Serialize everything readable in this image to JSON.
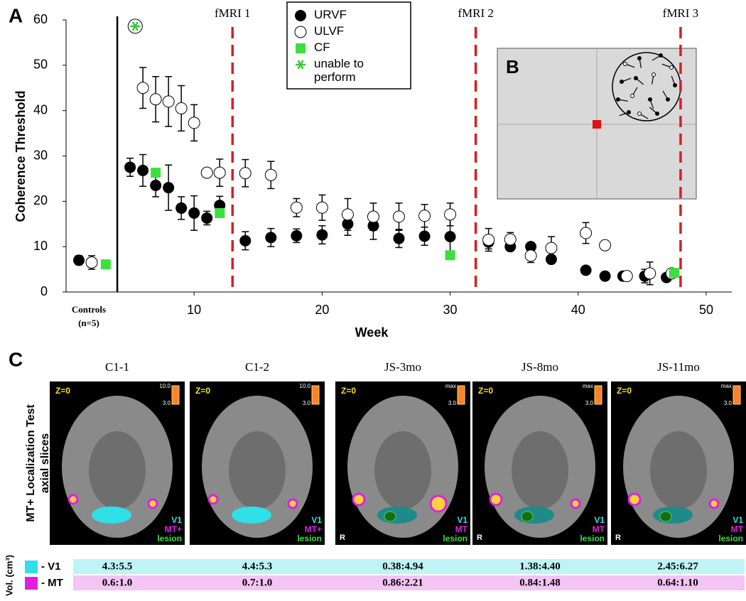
{
  "chart_data": {
    "type": "scatter",
    "panel_label": "A",
    "y_label": "Coherence Threshold",
    "x_label": "Week",
    "controls_label": "Controls",
    "controls_n": "(n=5)",
    "xlim": [
      0,
      52
    ],
    "ylim": [
      0,
      60
    ],
    "xticks": [
      10,
      20,
      30,
      40,
      50
    ],
    "yticks": [
      0,
      10,
      20,
      30,
      40,
      50,
      60
    ],
    "divider_x": 4,
    "vlines": [
      {
        "x": 13,
        "label": "fMRI 1"
      },
      {
        "x": 32,
        "label": "fMRI 2"
      },
      {
        "x": 48,
        "label": "fMRI 3"
      }
    ],
    "vline_color": "#d42020",
    "series": [
      {
        "name": "URVF",
        "marker": "filled-circle",
        "color": "#000000",
        "x": [
          1,
          5,
          6,
          7,
          8,
          9,
          10,
          11,
          12,
          14,
          16,
          18,
          20,
          22,
          24,
          26,
          28,
          30,
          33,
          34.7,
          36.3,
          37.9,
          40.6,
          42.1,
          43.5,
          45.2,
          46.9
        ],
        "values": [
          7,
          27.5,
          26.8,
          23.5,
          23,
          18.5,
          17.4,
          16.3,
          19.1,
          11.3,
          12,
          12.4,
          12.6,
          15,
          14.6,
          11.8,
          12.3,
          12.2,
          11,
          10,
          10,
          7.2,
          4.8,
          3.5,
          3.5,
          3.5,
          3.2
        ],
        "errors": [
          1,
          2,
          3.5,
          2.5,
          5,
          2.5,
          3.8,
          1.5,
          2,
          2,
          2,
          1.5,
          2,
          2.5,
          3,
          2,
          2,
          5,
          1.5,
          0,
          0,
          0,
          0,
          0,
          0,
          1.5,
          0
        ]
      },
      {
        "name": "ULVF",
        "marker": "open-circle",
        "color": "#000000",
        "x": [
          2,
          6,
          7,
          8,
          9,
          10,
          11,
          12,
          14,
          16,
          18,
          20,
          22,
          24,
          26,
          28,
          30,
          33,
          34.7,
          36.3,
          37.9,
          40.6,
          42.1,
          43.8,
          45.6,
          47.3
        ],
        "values": [
          6.5,
          45,
          42.5,
          42,
          40.5,
          37.3,
          26.3,
          26.3,
          26.2,
          25.8,
          18.6,
          18.6,
          17.1,
          16.6,
          16.6,
          16.8,
          17.1,
          11.5,
          11.6,
          8,
          9.7,
          13,
          10.3,
          3.5,
          4.1,
          4.1
        ],
        "errors": [
          1.5,
          4.5,
          5,
          5.5,
          5,
          4,
          1,
          3,
          3,
          3,
          2,
          2.8,
          3.5,
          3,
          3,
          2.5,
          2.5,
          2.5,
          1.5,
          1.5,
          2.5,
          2.3,
          0.8,
          1,
          2.5,
          0
        ]
      },
      {
        "name": "CF",
        "marker": "square",
        "color": "#3ce03c",
        "x": [
          3.1,
          7,
          12,
          30,
          47.5
        ],
        "values": [
          6.1,
          26.3,
          17.4,
          8.1,
          4.2
        ]
      },
      {
        "name": "unable to perform",
        "marker": "asterisk",
        "color": "#3cc83c",
        "x": [
          5.4
        ],
        "values": [
          58.6
        ]
      }
    ]
  },
  "panel_b": {
    "label": "B"
  },
  "panel_c": {
    "label": "C",
    "side_label_lines": [
      "MT+ Localization Test",
      "axial slices"
    ],
    "images": [
      {
        "title": "C1-1",
        "slice": "Z=0",
        "scale_max": "10.0",
        "scale_min": "3.0",
        "legend": [
          "V1",
          "MT+",
          "lesion"
        ]
      },
      {
        "title": "C1-2",
        "slice": "Z=0",
        "scale_max": "10.0",
        "scale_min": "3.0",
        "legend": [
          "V1",
          "MT+",
          "lesion"
        ]
      },
      {
        "title": "JS-3mo",
        "slice": "Z=0",
        "scale_max": "max",
        "scale_min": "3.0",
        "legend": [
          "V1",
          "MT",
          "lesion"
        ],
        "side": "R"
      },
      {
        "title": "JS-8mo",
        "slice": "Z=0",
        "scale_max": "max",
        "scale_min": "3.0",
        "legend": [
          "V1",
          "MT",
          "lesion"
        ],
        "side": "R"
      },
      {
        "title": "JS-11mo",
        "slice": "Z=0",
        "scale_max": "max",
        "scale_min": "3.0",
        "legend": [
          "V1",
          "MT",
          "lesion"
        ],
        "side": "R"
      }
    ]
  },
  "table": {
    "vol_label": "Vol. (cm³)",
    "rows": [
      {
        "name": "- V1",
        "color": "#2fe0e8",
        "background": "#bff4f6",
        "cells": [
          "4.3:5.5",
          "4.4:5.3",
          "0.38:4.94",
          "1.38:4.40",
          "2.45:6.27"
        ]
      },
      {
        "name": "- MT",
        "color": "#e020e0",
        "background": "#f4c4f4",
        "cells": [
          "0.6:1.0",
          "0.7:1.0",
          "0.86:2.21",
          "0.84:1.48",
          "0.64:1.10"
        ]
      }
    ]
  }
}
